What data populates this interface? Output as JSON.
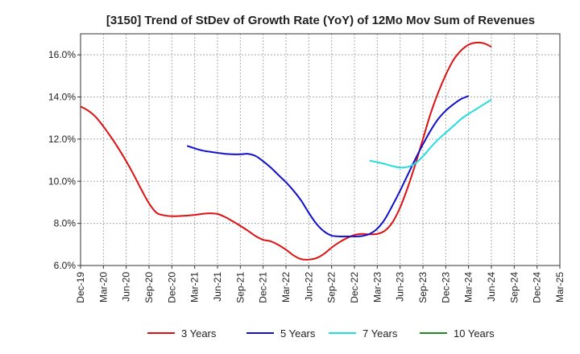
{
  "chart_data": {
    "type": "line",
    "title": "[3150]  Trend of StDev of Growth Rate (YoY) of 12Mo Mov Sum of Revenues",
    "xlabel": "",
    "ylabel": "",
    "ylim": [
      6.0,
      17.0
    ],
    "yticks": [
      "6.0%",
      "8.0%",
      "10.0%",
      "12.0%",
      "14.0%",
      "16.0%"
    ],
    "ytick_values": [
      6,
      8,
      10,
      12,
      14,
      16
    ],
    "x_labels": [
      "Dec-19",
      "Mar-20",
      "Jun-20",
      "Sep-20",
      "Dec-20",
      "Mar-21",
      "Jun-21",
      "Sep-21",
      "Dec-21",
      "Mar-22",
      "Jun-22",
      "Sep-22",
      "Dec-22",
      "Mar-23",
      "Jun-23",
      "Sep-23",
      "Dec-23",
      "Mar-24",
      "Jun-24",
      "Sep-24",
      "Dec-24",
      "Mar-25"
    ],
    "x_start": "Dec-19",
    "months_total": 63,
    "grid": true,
    "legend_position": "bottom",
    "series": [
      {
        "name": "3 Years",
        "color": "#dd1111",
        "start_month": 0,
        "values": [
          13.55,
          13.35,
          13.05,
          12.6,
          12.1,
          11.55,
          10.95,
          10.3,
          9.6,
          8.95,
          8.5,
          8.38,
          8.34,
          8.35,
          8.37,
          8.4,
          8.45,
          8.48,
          8.45,
          8.3,
          8.1,
          7.88,
          7.65,
          7.4,
          7.22,
          7.15,
          6.98,
          6.75,
          6.48,
          6.3,
          6.28,
          6.35,
          6.55,
          6.85,
          7.1,
          7.3,
          7.45,
          7.5,
          7.48,
          7.5,
          7.65,
          8.05,
          8.75,
          9.7,
          10.8,
          12.0,
          13.2,
          14.2,
          15.05,
          15.75,
          16.2,
          16.48,
          16.58,
          16.55,
          16.38
        ]
      },
      {
        "name": "5 Years",
        "color": "#1111cc",
        "start_month": 14,
        "values": [
          11.68,
          11.56,
          11.46,
          11.4,
          11.35,
          11.3,
          11.28,
          11.28,
          11.3,
          11.2,
          10.95,
          10.65,
          10.3,
          9.95,
          9.55,
          9.08,
          8.5,
          7.98,
          7.62,
          7.42,
          7.38,
          7.38,
          7.38,
          7.4,
          7.5,
          7.75,
          8.2,
          8.85,
          9.55,
          10.3,
          11.05,
          11.75,
          12.4,
          12.95,
          13.35,
          13.65,
          13.9,
          14.05
        ]
      },
      {
        "name": "7 Years",
        "color": "#22dddd",
        "start_month": 38,
        "values": [
          10.98,
          10.9,
          10.82,
          10.72,
          10.65,
          10.68,
          10.85,
          11.18,
          11.6,
          11.98,
          12.3,
          12.62,
          12.95,
          13.2,
          13.42,
          13.65,
          13.88
        ]
      },
      {
        "name": "10 Years",
        "color": "#228822",
        "start_month": 0,
        "values": []
      }
    ]
  }
}
